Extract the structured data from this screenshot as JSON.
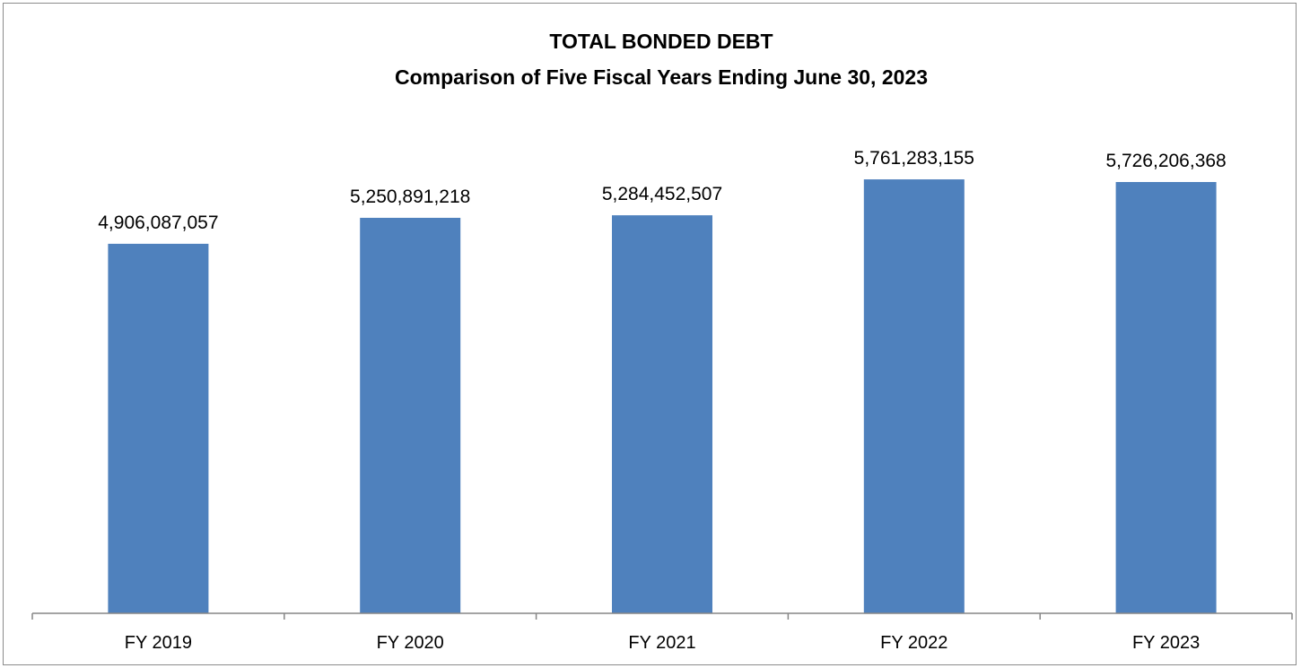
{
  "chart_data": {
    "type": "bar",
    "title": "TOTAL BONDED DEBT",
    "subtitle": "Comparison of Five Fiscal Years Ending June 30, 2023",
    "categories": [
      "FY 2019",
      "FY 2020",
      "FY 2021",
      "FY 2022",
      "FY 2023"
    ],
    "values": [
      4906087057,
      5250891218,
      5284452507,
      5761283155,
      5726206368
    ],
    "data_labels": [
      "4,906,087,057",
      "5,250,891,218",
      "5,284,452,507",
      "5,761,283,155",
      "5,726,206,368"
    ],
    "xlabel": "",
    "ylabel": "",
    "ylim": [
      0,
      7000000000
    ],
    "grid": false,
    "legend": "none",
    "bar_color": "#4F81BD",
    "axis_color": "#868686"
  }
}
